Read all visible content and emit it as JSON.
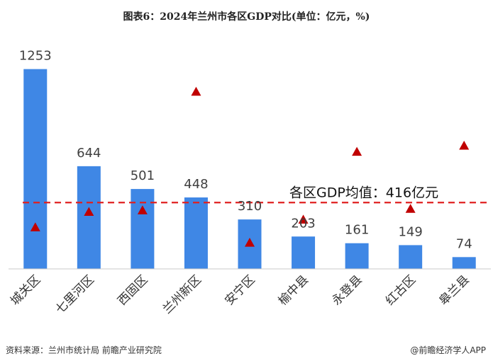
{
  "title": "图表6：2024年兰州市各区GDP对比(单位：亿元，%)",
  "chart_data": {
    "type": "bar",
    "categories": [
      "城关区",
      "七里河区",
      "西固区",
      "兰州新区",
      "安宁区",
      "榆中县",
      "永登县",
      "红古区",
      "皋兰县"
    ],
    "series": [
      {
        "values": [
          1253,
          644,
          501,
          448,
          310,
          203,
          161,
          149,
          74
        ]
      },
      {
        "values": [
          6.0,
          7.0,
          7.1,
          14.8,
          5.0,
          6.5,
          10.9,
          7.2,
          11.3
        ]
      }
    ],
    "series_types": [
      "bar",
      "marker"
    ],
    "data_labels": [
      "1253",
      "644",
      "501",
      "448",
      "310",
      "203",
      "161",
      "149",
      "74"
    ],
    "bar_axis": {
      "min": 0,
      "max": 1420
    },
    "marker_axis": {
      "min": 3.3,
      "max": 18.0
    },
    "reference_line": {
      "value": 416,
      "label": "各区GDP均值：416亿元"
    },
    "colors": {
      "bar": "#3f87e5",
      "marker": "#c00000",
      "reference_line": "#e02020"
    },
    "grid": false,
    "legend": "none"
  },
  "footer": {
    "source": "资料来源：兰州市统计局 前瞻产业研究院",
    "brand": "@前瞻经济学人APP"
  }
}
